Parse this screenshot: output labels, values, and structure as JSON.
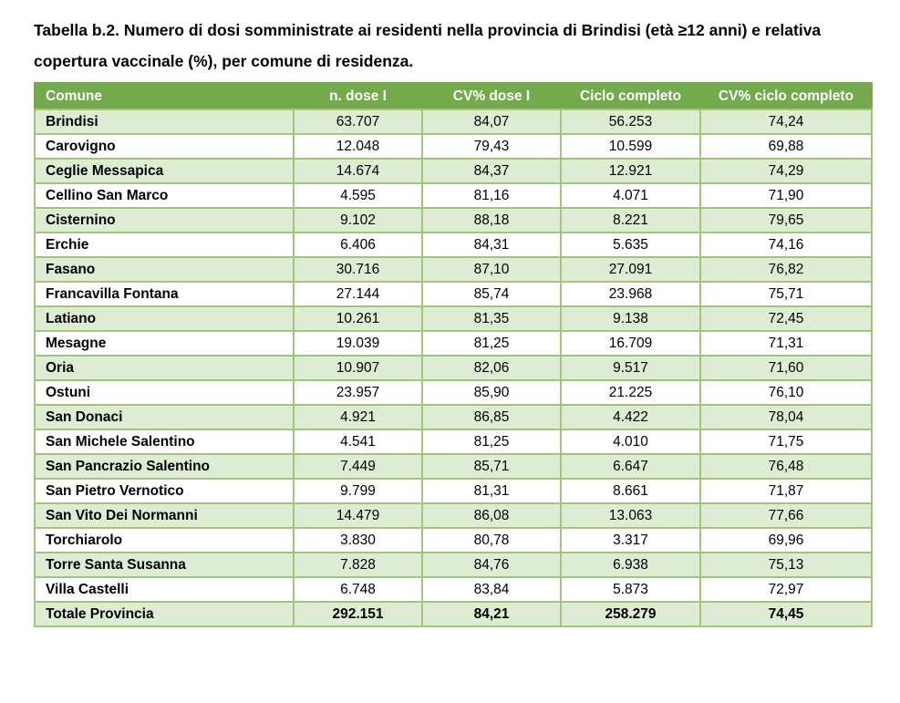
{
  "page": {
    "title_line1": "Tabella b.2. Numero di dosi somministrate ai residenti nella provincia di Brindisi (età ≥12 anni) e",
    "title_line2": "relativa copertura vaccinale (%), per comune di residenza."
  },
  "colors": {
    "header_bg": "#75a94d",
    "row_alt_bg": "#deecd4",
    "border": "#a2c57c",
    "header_text": "#ffffff",
    "body_text": "#000000"
  },
  "table": {
    "columns": [
      "Comune",
      "n. dose I",
      "CV% dose I",
      "Ciclo completo",
      "CV% ciclo completo"
    ],
    "rows": [
      {
        "comune": "Brindisi",
        "values": [
          "63.707",
          "84,07",
          "56.253",
          "74,24"
        ]
      },
      {
        "comune": "Carovigno",
        "values": [
          "12.048",
          "79,43",
          "10.599",
          "69,88"
        ]
      },
      {
        "comune": "Ceglie Messapica",
        "values": [
          "14.674",
          "84,37",
          "12.921",
          "74,29"
        ]
      },
      {
        "comune": "Cellino San Marco",
        "values": [
          "4.595",
          "81,16",
          "4.071",
          "71,90"
        ]
      },
      {
        "comune": "Cisternino",
        "values": [
          "9.102",
          "88,18",
          "8.221",
          "79,65"
        ]
      },
      {
        "comune": "Erchie",
        "values": [
          "6.406",
          "84,31",
          "5.635",
          "74,16"
        ]
      },
      {
        "comune": "Fasano",
        "values": [
          "30.716",
          "87,10",
          "27.091",
          "76,82"
        ]
      },
      {
        "comune": "Francavilla Fontana",
        "values": [
          "27.144",
          "85,74",
          "23.968",
          "75,71"
        ]
      },
      {
        "comune": "Latiano",
        "values": [
          "10.261",
          "81,35",
          "9.138",
          "72,45"
        ]
      },
      {
        "comune": "Mesagne",
        "values": [
          "19.039",
          "81,25",
          "16.709",
          "71,31"
        ]
      },
      {
        "comune": "Oria",
        "values": [
          "10.907",
          "82,06",
          "9.517",
          "71,60"
        ]
      },
      {
        "comune": "Ostuni",
        "values": [
          "23.957",
          "85,90",
          "21.225",
          "76,10"
        ]
      },
      {
        "comune": "San Donaci",
        "values": [
          "4.921",
          "86,85",
          "4.422",
          "78,04"
        ]
      },
      {
        "comune": "San Michele Salentino",
        "values": [
          "4.541",
          "81,25",
          "4.010",
          "71,75"
        ]
      },
      {
        "comune": "San Pancrazio Salentino",
        "values": [
          "7.449",
          "85,71",
          "6.647",
          "76,48"
        ]
      },
      {
        "comune": "San Pietro Vernotico",
        "values": [
          "9.799",
          "81,31",
          "8.661",
          "71,87"
        ]
      },
      {
        "comune": "San Vito Dei Normanni",
        "values": [
          "14.479",
          "86,08",
          "13.063",
          "77,66"
        ]
      },
      {
        "comune": "Torchiarolo",
        "values": [
          "3.830",
          "80,78",
          "3.317",
          "69,96"
        ]
      },
      {
        "comune": "Torre Santa Susanna",
        "values": [
          "7.828",
          "84,76",
          "6.938",
          "75,13"
        ]
      },
      {
        "comune": "Villa Castelli",
        "values": [
          "6.748",
          "83,84",
          "5.873",
          "72,97"
        ]
      }
    ],
    "total_row": {
      "comune": "Totale Provincia",
      "values": [
        "292.151",
        "84,21",
        "258.279",
        "74,45"
      ]
    }
  }
}
